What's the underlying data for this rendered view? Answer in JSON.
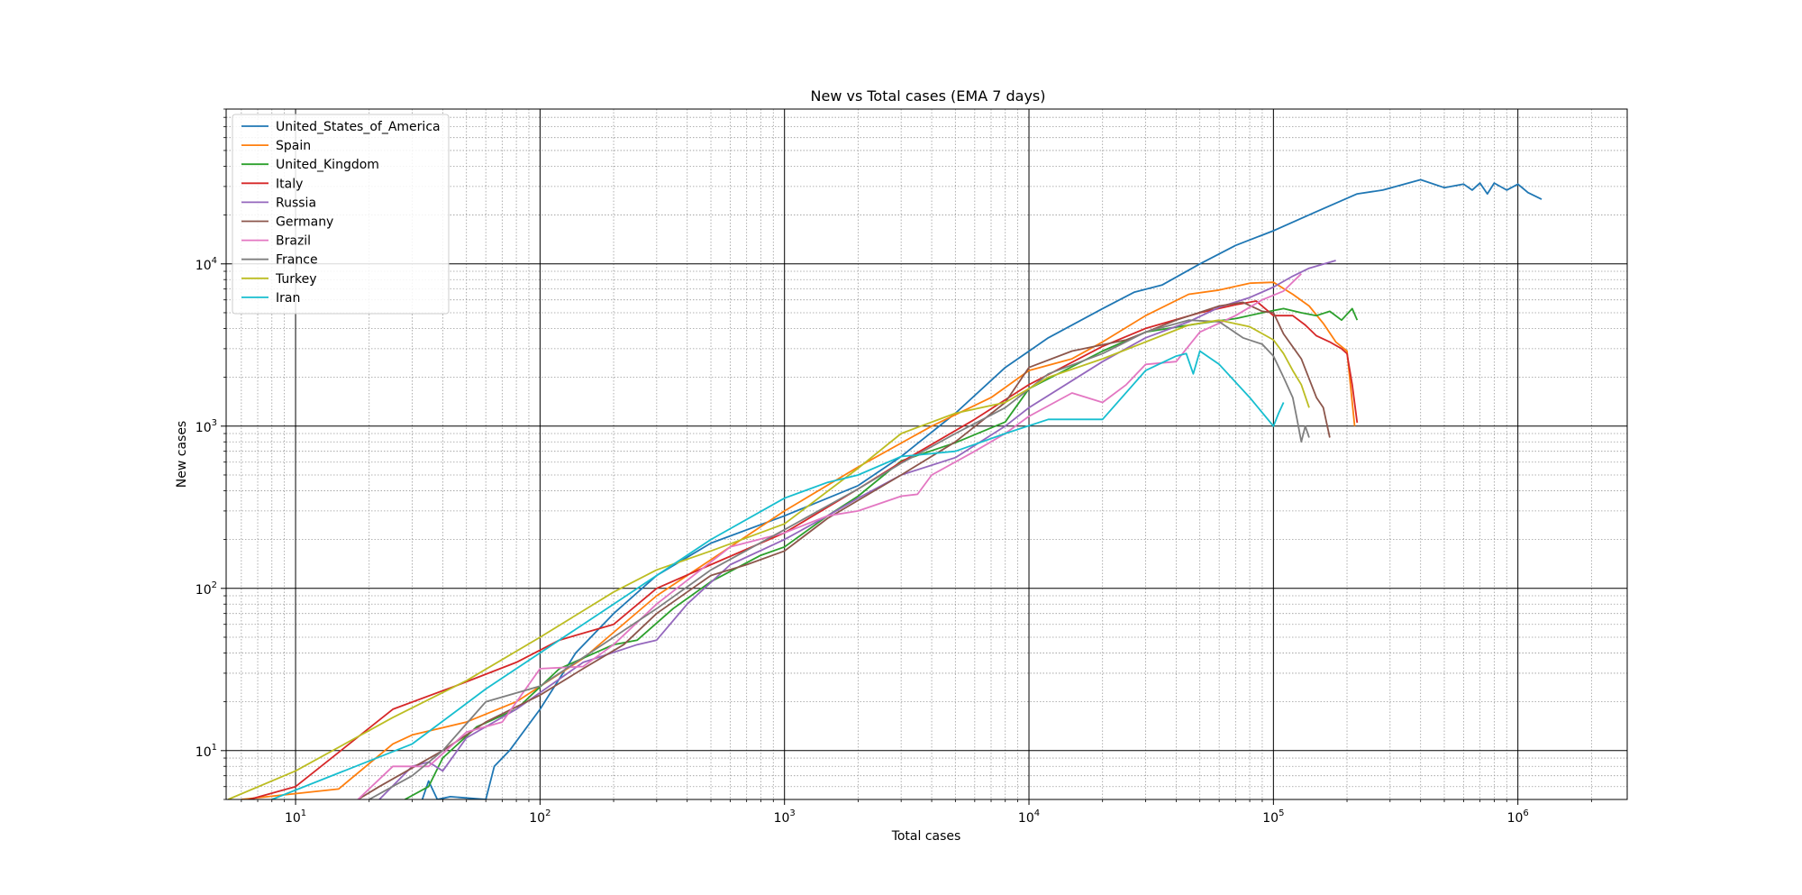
{
  "chart_data": {
    "type": "line",
    "title": "New vs Total cases (EMA 7 days)",
    "xlabel": "Total cases",
    "ylabel": "New cases",
    "xscale": "log",
    "yscale": "log",
    "xlim": [
      5.2,
      2800000
    ],
    "ylim": [
      5,
      90000
    ],
    "grid": "major and minor",
    "legend_position": "top-left",
    "x_ticks": [
      {
        "base": "10",
        "exp": "1"
      },
      {
        "base": "10",
        "exp": "2"
      },
      {
        "base": "10",
        "exp": "3"
      },
      {
        "base": "10",
        "exp": "4"
      },
      {
        "base": "10",
        "exp": "5"
      },
      {
        "base": "10",
        "exp": "6"
      }
    ],
    "y_ticks": [
      {
        "base": "10",
        "exp": "1"
      },
      {
        "base": "10",
        "exp": "2"
      },
      {
        "base": "10",
        "exp": "3"
      },
      {
        "base": "10",
        "exp": "4"
      }
    ],
    "series": [
      {
        "name": "United_States_of_America",
        "color": "#1f77b4",
        "points": [
          [
            33,
            5
          ],
          [
            35,
            6.5
          ],
          [
            38,
            5
          ],
          [
            43,
            5.2
          ],
          [
            60,
            5
          ],
          [
            65,
            8
          ],
          [
            75,
            10
          ],
          [
            100,
            18
          ],
          [
            140,
            40
          ],
          [
            200,
            70
          ],
          [
            300,
            120
          ],
          [
            500,
            190
          ],
          [
            1000,
            280
          ],
          [
            2000,
            430
          ],
          [
            3000,
            650
          ],
          [
            5000,
            1200
          ],
          [
            8000,
            2300
          ],
          [
            12000,
            3500
          ],
          [
            20000,
            5300
          ],
          [
            27000,
            6700
          ],
          [
            35000,
            7400
          ],
          [
            50000,
            10000
          ],
          [
            70000,
            13000
          ],
          [
            100000,
            16000
          ],
          [
            150000,
            21000
          ],
          [
            220000,
            27000
          ],
          [
            280000,
            28500
          ],
          [
            400000,
            33000
          ],
          [
            500000,
            29500
          ],
          [
            600000,
            31000
          ],
          [
            650000,
            28500
          ],
          [
            700000,
            31500
          ],
          [
            750000,
            27000
          ],
          [
            800000,
            31500
          ],
          [
            900000,
            28500
          ],
          [
            1000000,
            31000
          ],
          [
            1100000,
            27500
          ],
          [
            1250000,
            25000
          ]
        ]
      },
      {
        "name": "Spain",
        "color": "#ff7f0e",
        "points": [
          [
            6,
            5
          ],
          [
            15,
            5.8
          ],
          [
            25,
            11
          ],
          [
            30,
            12.5
          ],
          [
            50,
            15
          ],
          [
            80,
            20
          ],
          [
            150,
            37
          ],
          [
            300,
            90
          ],
          [
            600,
            180
          ],
          [
            1000,
            300
          ],
          [
            2000,
            560
          ],
          [
            4000,
            1000
          ],
          [
            7000,
            1500
          ],
          [
            10000,
            2200
          ],
          [
            15000,
            2600
          ],
          [
            20000,
            3300
          ],
          [
            30000,
            4800
          ],
          [
            45000,
            6500
          ],
          [
            60000,
            6900
          ],
          [
            80000,
            7600
          ],
          [
            100000,
            7700
          ],
          [
            120000,
            6500
          ],
          [
            140000,
            5500
          ],
          [
            160000,
            4300
          ],
          [
            180000,
            3300
          ],
          [
            200000,
            2900
          ],
          [
            215000,
            1000
          ]
        ]
      },
      {
        "name": "United_Kingdom",
        "color": "#2ca02c",
        "points": [
          [
            28,
            5
          ],
          [
            35,
            6
          ],
          [
            40,
            9
          ],
          [
            55,
            14
          ],
          [
            80,
            18
          ],
          [
            120,
            32
          ],
          [
            200,
            45
          ],
          [
            250,
            48
          ],
          [
            350,
            75
          ],
          [
            500,
            110
          ],
          [
            800,
            160
          ],
          [
            1000,
            180
          ],
          [
            1500,
            280
          ],
          [
            2000,
            370
          ],
          [
            3000,
            610
          ],
          [
            5000,
            790
          ],
          [
            8000,
            1060
          ],
          [
            10000,
            1700
          ],
          [
            20000,
            2900
          ],
          [
            30000,
            3800
          ],
          [
            50000,
            4300
          ],
          [
            70000,
            4600
          ],
          [
            90000,
            5000
          ],
          [
            110000,
            5300
          ],
          [
            130000,
            5000
          ],
          [
            150000,
            4800
          ],
          [
            170000,
            5100
          ],
          [
            190000,
            4500
          ],
          [
            210000,
            5300
          ],
          [
            220000,
            4500
          ]
        ]
      },
      {
        "name": "Italy",
        "color": "#d62728",
        "points": [
          [
            5.3,
            4.6
          ],
          [
            10,
            6
          ],
          [
            25,
            18
          ],
          [
            45,
            25
          ],
          [
            80,
            35
          ],
          [
            120,
            48
          ],
          [
            200,
            60
          ],
          [
            300,
            100
          ],
          [
            500,
            140
          ],
          [
            1000,
            220
          ],
          [
            2000,
            410
          ],
          [
            3000,
            600
          ],
          [
            6000,
            1100
          ],
          [
            10000,
            1800
          ],
          [
            20000,
            3100
          ],
          [
            30000,
            4000
          ],
          [
            50000,
            5000
          ],
          [
            70000,
            5600
          ],
          [
            85000,
            5900
          ],
          [
            100000,
            4800
          ],
          [
            120000,
            4800
          ],
          [
            135000,
            4200
          ],
          [
            150000,
            3600
          ],
          [
            170000,
            3300
          ],
          [
            190000,
            3000
          ],
          [
            200000,
            2800
          ],
          [
            210000,
            1800
          ],
          [
            220000,
            1050
          ]
        ]
      },
      {
        "name": "Russia",
        "color": "#9467bd",
        "points": [
          [
            22,
            5
          ],
          [
            30,
            8
          ],
          [
            35,
            8.5
          ],
          [
            40,
            7.5
          ],
          [
            50,
            12
          ],
          [
            80,
            18
          ],
          [
            150,
            35
          ],
          [
            250,
            45
          ],
          [
            300,
            48
          ],
          [
            400,
            80
          ],
          [
            600,
            140
          ],
          [
            1000,
            200
          ],
          [
            1500,
            280
          ],
          [
            2000,
            360
          ],
          [
            3000,
            500
          ],
          [
            5000,
            640
          ],
          [
            8000,
            1000
          ],
          [
            10000,
            1300
          ],
          [
            20000,
            2500
          ],
          [
            30000,
            3500
          ],
          [
            45000,
            4400
          ],
          [
            60000,
            5400
          ],
          [
            80000,
            6200
          ],
          [
            100000,
            7200
          ],
          [
            120000,
            8400
          ],
          [
            140000,
            9400
          ],
          [
            180000,
            10500
          ]
        ]
      },
      {
        "name": "Germany",
        "color": "#8c564b",
        "points": [
          [
            18,
            5
          ],
          [
            22,
            6
          ],
          [
            40,
            10
          ],
          [
            60,
            15
          ],
          [
            100,
            22
          ],
          [
            150,
            32
          ],
          [
            220,
            45
          ],
          [
            300,
            70
          ],
          [
            400,
            95
          ],
          [
            500,
            120
          ],
          [
            700,
            140
          ],
          [
            1000,
            170
          ],
          [
            1500,
            270
          ],
          [
            3000,
            500
          ],
          [
            5000,
            800
          ],
          [
            8000,
            1400
          ],
          [
            10000,
            2300
          ],
          [
            15000,
            2900
          ],
          [
            25000,
            3400
          ],
          [
            40000,
            4500
          ],
          [
            60000,
            5500
          ],
          [
            75000,
            5800
          ],
          [
            90000,
            5100
          ],
          [
            100000,
            5000
          ],
          [
            110000,
            3700
          ],
          [
            130000,
            2600
          ],
          [
            150000,
            1500
          ],
          [
            160000,
            1300
          ],
          [
            170000,
            850
          ]
        ]
      },
      {
        "name": "Brazil",
        "color": "#e377c2",
        "points": [
          [
            18,
            5
          ],
          [
            25,
            8
          ],
          [
            35,
            8
          ],
          [
            50,
            13
          ],
          [
            70,
            15
          ],
          [
            100,
            32
          ],
          [
            150,
            33
          ],
          [
            200,
            45
          ],
          [
            300,
            80
          ],
          [
            600,
            180
          ],
          [
            1000,
            220
          ],
          [
            1500,
            280
          ],
          [
            2000,
            300
          ],
          [
            3000,
            370
          ],
          [
            3500,
            380
          ],
          [
            4000,
            500
          ],
          [
            6000,
            700
          ],
          [
            8000,
            900
          ],
          [
            10000,
            1150
          ],
          [
            15000,
            1600
          ],
          [
            20000,
            1400
          ],
          [
            25000,
            1800
          ],
          [
            30000,
            2400
          ],
          [
            40000,
            2500
          ],
          [
            50000,
            3800
          ],
          [
            70000,
            4800
          ],
          [
            90000,
            6000
          ],
          [
            110000,
            6800
          ],
          [
            130000,
            8700
          ]
        ]
      },
      {
        "name": "France",
        "color": "#7f7f7f",
        "points": [
          [
            20,
            5
          ],
          [
            30,
            7
          ],
          [
            40,
            10
          ],
          [
            60,
            20
          ],
          [
            100,
            25
          ],
          [
            200,
            50
          ],
          [
            300,
            75
          ],
          [
            500,
            130
          ],
          [
            1000,
            230
          ],
          [
            2000,
            410
          ],
          [
            3000,
            590
          ],
          [
            5000,
            900
          ],
          [
            8000,
            1300
          ],
          [
            12000,
            2100
          ],
          [
            20000,
            2800
          ],
          [
            30000,
            3800
          ],
          [
            45000,
            4500
          ],
          [
            60000,
            4400
          ],
          [
            75000,
            3500
          ],
          [
            90000,
            3200
          ],
          [
            100000,
            2700
          ],
          [
            110000,
            2000
          ],
          [
            120000,
            1500
          ],
          [
            125000,
            1100
          ],
          [
            130000,
            800
          ],
          [
            135000,
            1000
          ],
          [
            140000,
            850
          ]
        ]
      },
      {
        "name": "Turkey",
        "color": "#bcbd22",
        "points": [
          [
            5.3,
            5
          ],
          [
            10,
            7.5
          ],
          [
            25,
            16
          ],
          [
            50,
            27
          ],
          [
            100,
            50
          ],
          [
            200,
            95
          ],
          [
            300,
            130
          ],
          [
            500,
            170
          ],
          [
            1000,
            250
          ],
          [
            2000,
            550
          ],
          [
            3000,
            900
          ],
          [
            5000,
            1200
          ],
          [
            8000,
            1400
          ],
          [
            12000,
            2000
          ],
          [
            20000,
            2600
          ],
          [
            30000,
            3300
          ],
          [
            45000,
            4200
          ],
          [
            60000,
            4500
          ],
          [
            80000,
            4100
          ],
          [
            100000,
            3400
          ],
          [
            110000,
            2800
          ],
          [
            120000,
            2200
          ],
          [
            130000,
            1800
          ],
          [
            140000,
            1300
          ]
        ]
      },
      {
        "name": "Iran",
        "color": "#17becf",
        "points": [
          [
            8,
            5
          ],
          [
            30,
            11
          ],
          [
            60,
            24
          ],
          [
            100,
            40
          ],
          [
            200,
            80
          ],
          [
            300,
            120
          ],
          [
            500,
            200
          ],
          [
            1000,
            360
          ],
          [
            1500,
            450
          ],
          [
            2000,
            500
          ],
          [
            3000,
            650
          ],
          [
            5000,
            700
          ],
          [
            8000,
            900
          ],
          [
            12000,
            1100
          ],
          [
            20000,
            1100
          ],
          [
            30000,
            2200
          ],
          [
            40000,
            2700
          ],
          [
            44000,
            2800
          ],
          [
            47000,
            2100
          ],
          [
            50000,
            2900
          ],
          [
            60000,
            2400
          ],
          [
            80000,
            1500
          ],
          [
            100000,
            1000
          ],
          [
            105000,
            1200
          ],
          [
            110000,
            1400
          ]
        ]
      }
    ]
  }
}
